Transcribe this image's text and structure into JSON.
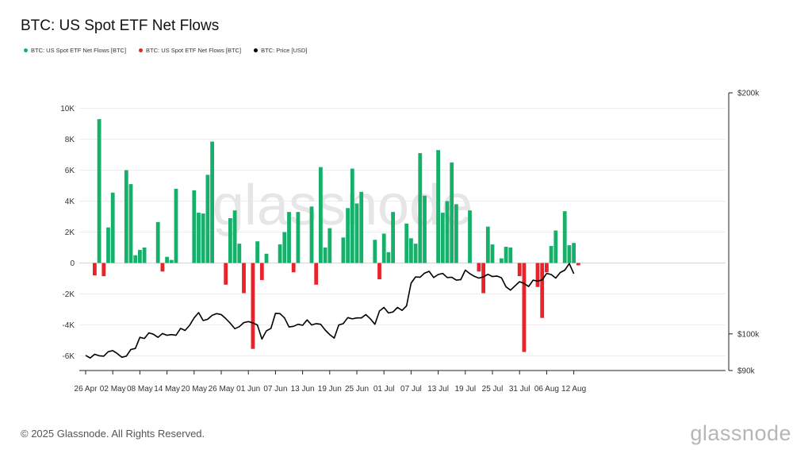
{
  "title": "BTC: US Spot ETF Net Flows",
  "legend": [
    {
      "label": "BTC: US Spot ETF Net Flows [BTC]",
      "color": "#16b06b"
    },
    {
      "label": "BTC: US Spot ETF Net Flows [BTC]",
      "color": "#e8242a"
    },
    {
      "label": "BTC: Price [USD]",
      "color": "#000000"
    }
  ],
  "footer": {
    "copyright": "© 2025 Glassnode. All Rights Reserved.",
    "brand": "glassnode"
  },
  "watermark": "glassnode",
  "chart_data": {
    "type": "bar",
    "title": "BTC: US Spot ETF Net Flows",
    "positive_color": "#16b06b",
    "negative_color": "#e8242a",
    "line_color": "#000000",
    "y_left": {
      "label": "",
      "range": [
        -7000,
        10000
      ],
      "ticks": [
        10000,
        8000,
        6000,
        4000,
        2000,
        0,
        -2000,
        -4000,
        -6000
      ],
      "tick_labels": [
        "10K",
        "8K",
        "6K",
        "4K",
        "2K",
        "0",
        "-2K",
        "-4K",
        "-6K"
      ]
    },
    "y_right": {
      "label": "",
      "range": [
        90000,
        200000
      ],
      "ticks": [
        200000,
        100000,
        90000
      ],
      "tick_labels": [
        "$200k",
        "$100k",
        "$90k"
      ],
      "scale": "log"
    },
    "x_tick_labels": [
      "26 Apr",
      "02 May",
      "08 May",
      "14 May",
      "20 May",
      "26 May",
      "01 Jun",
      "07 Jun",
      "13 Jun",
      "19 Jun",
      "25 Jun",
      "01 Jul",
      "07 Jul",
      "13 Jul",
      "19 Jul",
      "25 Jul",
      "31 Jul",
      "06 Aug",
      "12 Aug"
    ],
    "x_tick_days": [
      0,
      6,
      12,
      18,
      24,
      30,
      36,
      42,
      48,
      54,
      60,
      66,
      72,
      78,
      84,
      90,
      96,
      102,
      108
    ],
    "flows": [
      {
        "day": 2,
        "value": -800
      },
      {
        "day": 4,
        "value": -850
      },
      {
        "day": 3,
        "value": 9300
      },
      {
        "day": 5,
        "value": 2300
      },
      {
        "day": 6,
        "value": 4550
      },
      {
        "day": 9,
        "value": 6000
      },
      {
        "day": 10,
        "value": 5100
      },
      {
        "day": 11,
        "value": 500
      },
      {
        "day": 12,
        "value": 850
      },
      {
        "day": 13,
        "value": 1000
      },
      {
        "day": 16,
        "value": 2650
      },
      {
        "day": 17,
        "value": -550
      },
      {
        "day": 18,
        "value": 400
      },
      {
        "day": 19,
        "value": 200
      },
      {
        "day": 20,
        "value": 4800
      },
      {
        "day": 24,
        "value": 4700
      },
      {
        "day": 25,
        "value": 3250
      },
      {
        "day": 26,
        "value": 3200
      },
      {
        "day": 27,
        "value": 5700
      },
      {
        "day": 28,
        "value": 7850
      },
      {
        "day": 31,
        "value": -1400
      },
      {
        "day": 32,
        "value": 2900
      },
      {
        "day": 33,
        "value": 3400
      },
      {
        "day": 34,
        "value": 1250
      },
      {
        "day": 35,
        "value": -1950
      },
      {
        "day": 37,
        "value": -5550
      },
      {
        "day": 38,
        "value": 1400
      },
      {
        "day": 39,
        "value": -1100
      },
      {
        "day": 40,
        "value": 600
      },
      {
        "day": 43,
        "value": 1200
      },
      {
        "day": 44,
        "value": 2000
      },
      {
        "day": 45,
        "value": 3300
      },
      {
        "day": 46,
        "value": -600
      },
      {
        "day": 47,
        "value": 3300
      },
      {
        "day": 50,
        "value": 3650
      },
      {
        "day": 51,
        "value": -1400
      },
      {
        "day": 52,
        "value": 6200
      },
      {
        "day": 53,
        "value": 1000
      },
      {
        "day": 54,
        "value": 2250
      },
      {
        "day": 57,
        "value": 1650
      },
      {
        "day": 58,
        "value": 3550
      },
      {
        "day": 59,
        "value": 6100
      },
      {
        "day": 60,
        "value": 3850
      },
      {
        "day": 61,
        "value": 4600
      },
      {
        "day": 64,
        "value": 1500
      },
      {
        "day": 65,
        "value": -1050
      },
      {
        "day": 66,
        "value": 1900
      },
      {
        "day": 67,
        "value": 700
      },
      {
        "day": 68,
        "value": 3300
      },
      {
        "day": 71,
        "value": 2550
      },
      {
        "day": 72,
        "value": 1600
      },
      {
        "day": 73,
        "value": 1250
      },
      {
        "day": 74,
        "value": 7100
      },
      {
        "day": 75,
        "value": 4350
      },
      {
        "day": 78,
        "value": 7300
      },
      {
        "day": 79,
        "value": 3250
      },
      {
        "day": 80,
        "value": 4000
      },
      {
        "day": 81,
        "value": 6500
      },
      {
        "day": 82,
        "value": 3800
      },
      {
        "day": 85,
        "value": 3400
      },
      {
        "day": 87,
        "value": -550
      },
      {
        "day": 88,
        "value": -1950
      },
      {
        "day": 89,
        "value": 2350
      },
      {
        "day": 90,
        "value": 1200
      },
      {
        "day": 92,
        "value": 300
      },
      {
        "day": 93,
        "value": 1050
      },
      {
        "day": 94,
        "value": 1000
      },
      {
        "day": 96,
        "value": -850
      },
      {
        "day": 97,
        "value": -5750
      },
      {
        "day": 100,
        "value": -1550
      },
      {
        "day": 101,
        "value": -3550
      },
      {
        "day": 102,
        "value": -600
      },
      {
        "day": 103,
        "value": 1100
      },
      {
        "day": 104,
        "value": 2100
      },
      {
        "day": 106,
        "value": 3350
      },
      {
        "day": 107,
        "value": 1150
      },
      {
        "day": 108,
        "value": 1300
      },
      {
        "day": 109,
        "value": -150
      }
    ],
    "price": [
      94000,
      93300,
      94300,
      93900,
      93800,
      95000,
      95300,
      94500,
      93500,
      93800,
      95600,
      95900,
      99000,
      98700,
      100300,
      99900,
      99000,
      100100,
      99600,
      99800,
      99600,
      101600,
      101000,
      102500,
      104700,
      106300,
      103900,
      104300,
      105500,
      106000,
      105700,
      104500,
      103100,
      101500,
      102100,
      103300,
      103600,
      103200,
      102600,
      98500,
      100900,
      101600,
      106100,
      106000,
      104700,
      102000,
      102200,
      102800,
      102500,
      104100,
      102600,
      103000,
      102800,
      101100,
      99800,
      98800,
      102600,
      103000,
      104800,
      104400,
      104700,
      104700,
      105700,
      104400,
      102800,
      106800,
      107900,
      106200,
      106500,
      107900,
      107000,
      108400,
      115700,
      117800,
      117700,
      119100,
      119700,
      117600,
      118600,
      119000,
      117600,
      117700,
      116700,
      116900,
      120100,
      118900,
      118000,
      117400,
      117800,
      118700,
      117900,
      118100,
      117500,
      114500,
      113400,
      114800,
      116200,
      115600,
      114600,
      116700,
      116400,
      116800,
      119000,
      118600,
      117400,
      119300,
      120100,
      122400,
      118900
    ]
  }
}
